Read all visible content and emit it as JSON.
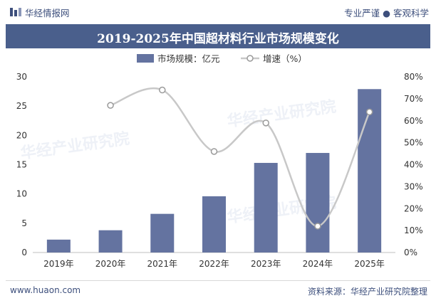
{
  "header": {
    "brand": "华经情报网",
    "slogan": "专业严谨 ● 客观科学",
    "title": "2019-2025年中国超材料行业市场规模变化"
  },
  "watermark": "华经产业研究院",
  "footer": {
    "website": "www.huaon.com",
    "source": "资料来源：华经产业研究院整理"
  },
  "colors": {
    "bar": "#6473a0",
    "line": "#c8c8c8",
    "titlebar": "#4a5f8c",
    "text": "#3d4f7c"
  },
  "chart_data": {
    "type": "bar+line",
    "title": "2019-2025年中国超材料行业市场规模变化",
    "categories": [
      "2019年",
      "2020年",
      "2021年",
      "2022年",
      "2023年",
      "2024年",
      "2025年"
    ],
    "series": [
      {
        "name": "市场规模：亿元",
        "type": "bar",
        "axis": "left",
        "values": [
          2.2,
          3.8,
          6.6,
          9.6,
          15.3,
          17.0,
          27.9
        ]
      },
      {
        "name": "增速（%）",
        "type": "line",
        "axis": "right",
        "values": [
          null,
          67,
          74,
          46,
          59,
          12,
          64
        ]
      }
    ],
    "y_left": {
      "min": 0,
      "max": 30,
      "ticks": [
        "0",
        "5",
        "10",
        "15",
        "20",
        "25",
        "30"
      ]
    },
    "y_right": {
      "min": 0,
      "max": 80,
      "ticks": [
        "0%",
        "10%",
        "20%",
        "30%",
        "40%",
        "50%",
        "60%",
        "70%",
        "80%"
      ]
    },
    "legend_position": "top"
  }
}
